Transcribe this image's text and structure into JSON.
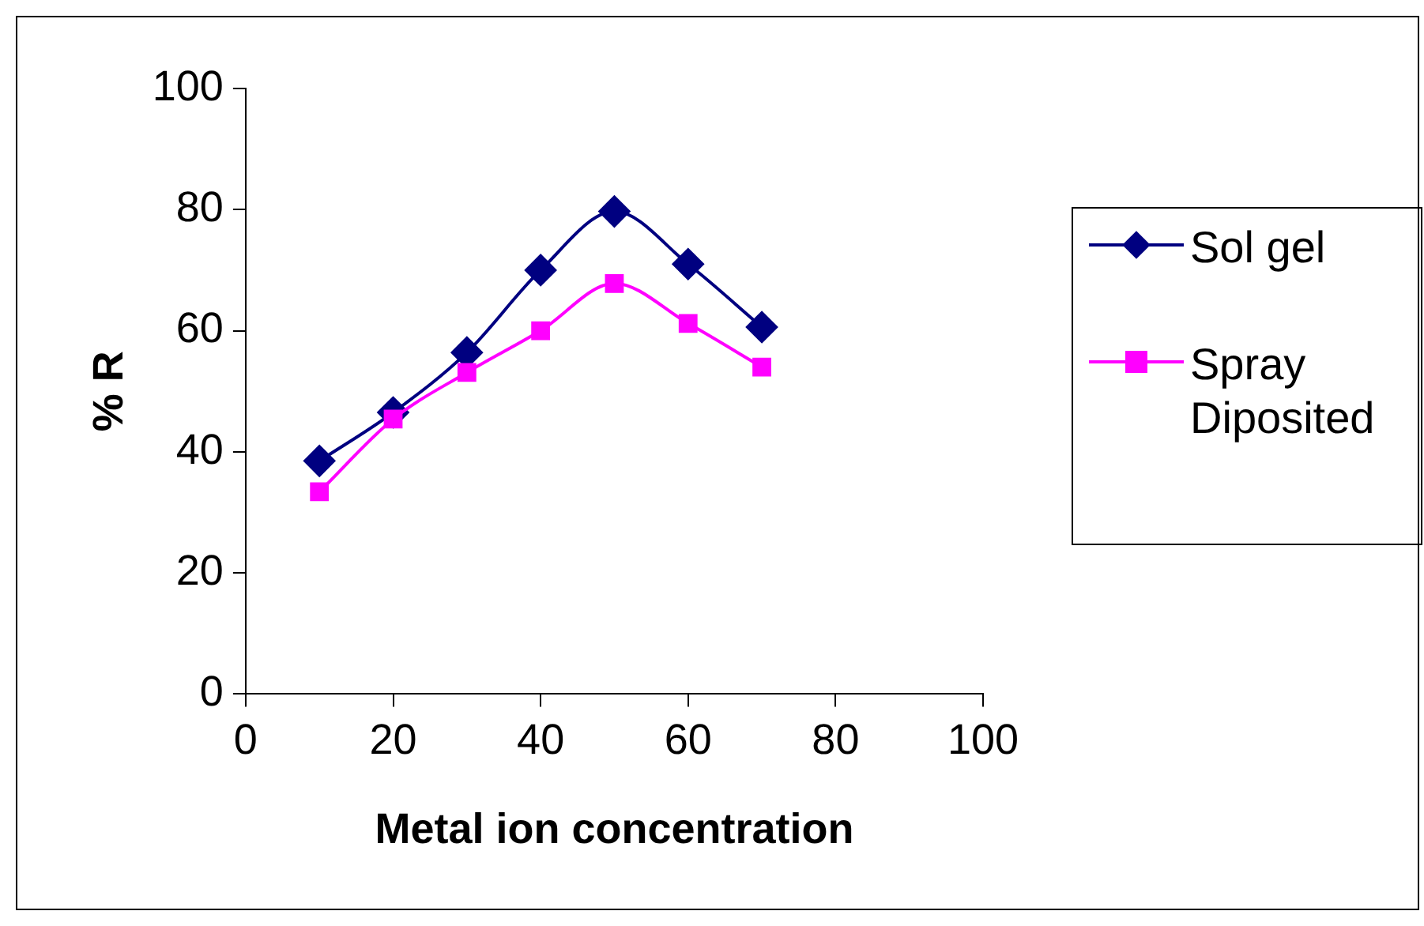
{
  "chart_data": {
    "type": "line",
    "xlabel": "Metal ion concentration",
    "ylabel": "% R",
    "x": [
      10,
      20,
      30,
      40,
      50,
      60,
      70
    ],
    "series": [
      {
        "name": "Sol gel",
        "color": "#000080",
        "marker": "diamond",
        "values": [
          38.5,
          46.5,
          56.4,
          70,
          79.7,
          71,
          60.6
        ]
      },
      {
        "name": "Spray Diposited",
        "color": "#ff00ff",
        "marker": "square",
        "values": [
          33.4,
          45.4,
          53.1,
          60,
          67.8,
          61.2,
          54
        ]
      }
    ],
    "xlim": [
      0,
      100
    ],
    "xticks": [
      0,
      20,
      40,
      60,
      80,
      100
    ],
    "ylim": [
      0,
      100
    ],
    "yticks": [
      0,
      20,
      40,
      60,
      80,
      100
    ],
    "grid": false,
    "legend": "right",
    "line_style": "solid"
  }
}
